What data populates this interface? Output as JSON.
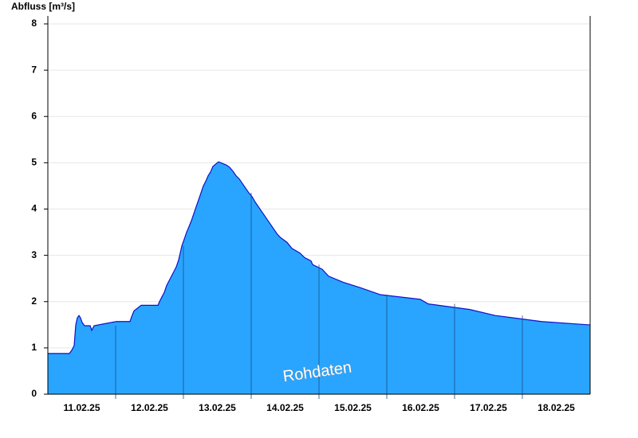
{
  "chart_data": {
    "type": "area",
    "ylabel": "Abfluss [m³/s]",
    "annotation": "Rohdaten",
    "color": "#29a5ff",
    "line_color": "#1010c8",
    "grid": true,
    "xlim": [
      0,
      8
    ],
    "ylim": [
      0,
      8
    ],
    "yticks": [
      0,
      1,
      2,
      3,
      4,
      5,
      6,
      7,
      8
    ],
    "xticks": [
      {
        "value": 0.5,
        "label": "11.02.25"
      },
      {
        "value": 1.5,
        "label": "12.02.25"
      },
      {
        "value": 2.5,
        "label": "13.02.25"
      },
      {
        "value": 3.5,
        "label": "14.02.25"
      },
      {
        "value": 4.5,
        "label": "15.02.25"
      },
      {
        "value": 5.5,
        "label": "16.02.25"
      },
      {
        "value": 6.5,
        "label": "17.02.25"
      },
      {
        "value": 7.5,
        "label": "18.02.25"
      }
    ],
    "x": [
      0,
      0.318,
      0.353,
      0.388,
      0.412,
      0.435,
      0.459,
      0.482,
      0.506,
      0.541,
      0.624,
      0.647,
      0.682,
      1.012,
      1.212,
      1.235,
      1.271,
      1.376,
      1.624,
      1.647,
      1.682,
      1.718,
      1.753,
      1.788,
      1.824,
      1.859,
      1.894,
      1.929,
      1.953,
      1.976,
      2.012,
      2.047,
      2.082,
      2.118,
      2.153,
      2.188,
      2.224,
      2.259,
      2.294,
      2.329,
      2.365,
      2.4,
      2.435,
      2.518,
      2.635,
      2.682,
      2.729,
      2.776,
      2.824,
      2.871,
      2.918,
      2.965,
      3.012,
      3.059,
      3.106,
      3.153,
      3.2,
      3.247,
      3.294,
      3.341,
      3.388,
      3.435,
      3.529,
      3.6,
      3.718,
      3.788,
      3.882,
      3.906,
      4.047,
      4.141,
      4.353,
      4.612,
      4.906,
      5.494,
      5.612,
      6.224,
      6.6,
      7.282,
      7.965,
      8
    ],
    "values": [
      0.88,
      0.88,
      0.95,
      1.05,
      1.5,
      1.65,
      1.7,
      1.65,
      1.55,
      1.48,
      1.48,
      1.38,
      1.48,
      1.57,
      1.57,
      1.67,
      1.8,
      1.92,
      1.92,
      2.0,
      2.1,
      2.2,
      2.35,
      2.45,
      2.55,
      2.65,
      2.75,
      2.9,
      3.05,
      3.2,
      3.35,
      3.5,
      3.62,
      3.75,
      3.9,
      4.05,
      4.2,
      4.35,
      4.5,
      4.6,
      4.72,
      4.8,
      4.92,
      5.02,
      4.95,
      4.9,
      4.82,
      4.72,
      4.65,
      4.55,
      4.45,
      4.35,
      4.27,
      4.15,
      4.05,
      3.95,
      3.85,
      3.75,
      3.65,
      3.55,
      3.45,
      3.38,
      3.28,
      3.15,
      3.05,
      2.95,
      2.88,
      2.8,
      2.7,
      2.55,
      2.42,
      2.3,
      2.15,
      2.05,
      1.95,
      1.83,
      1.7,
      1.57,
      1.5,
      1.5
    ]
  }
}
